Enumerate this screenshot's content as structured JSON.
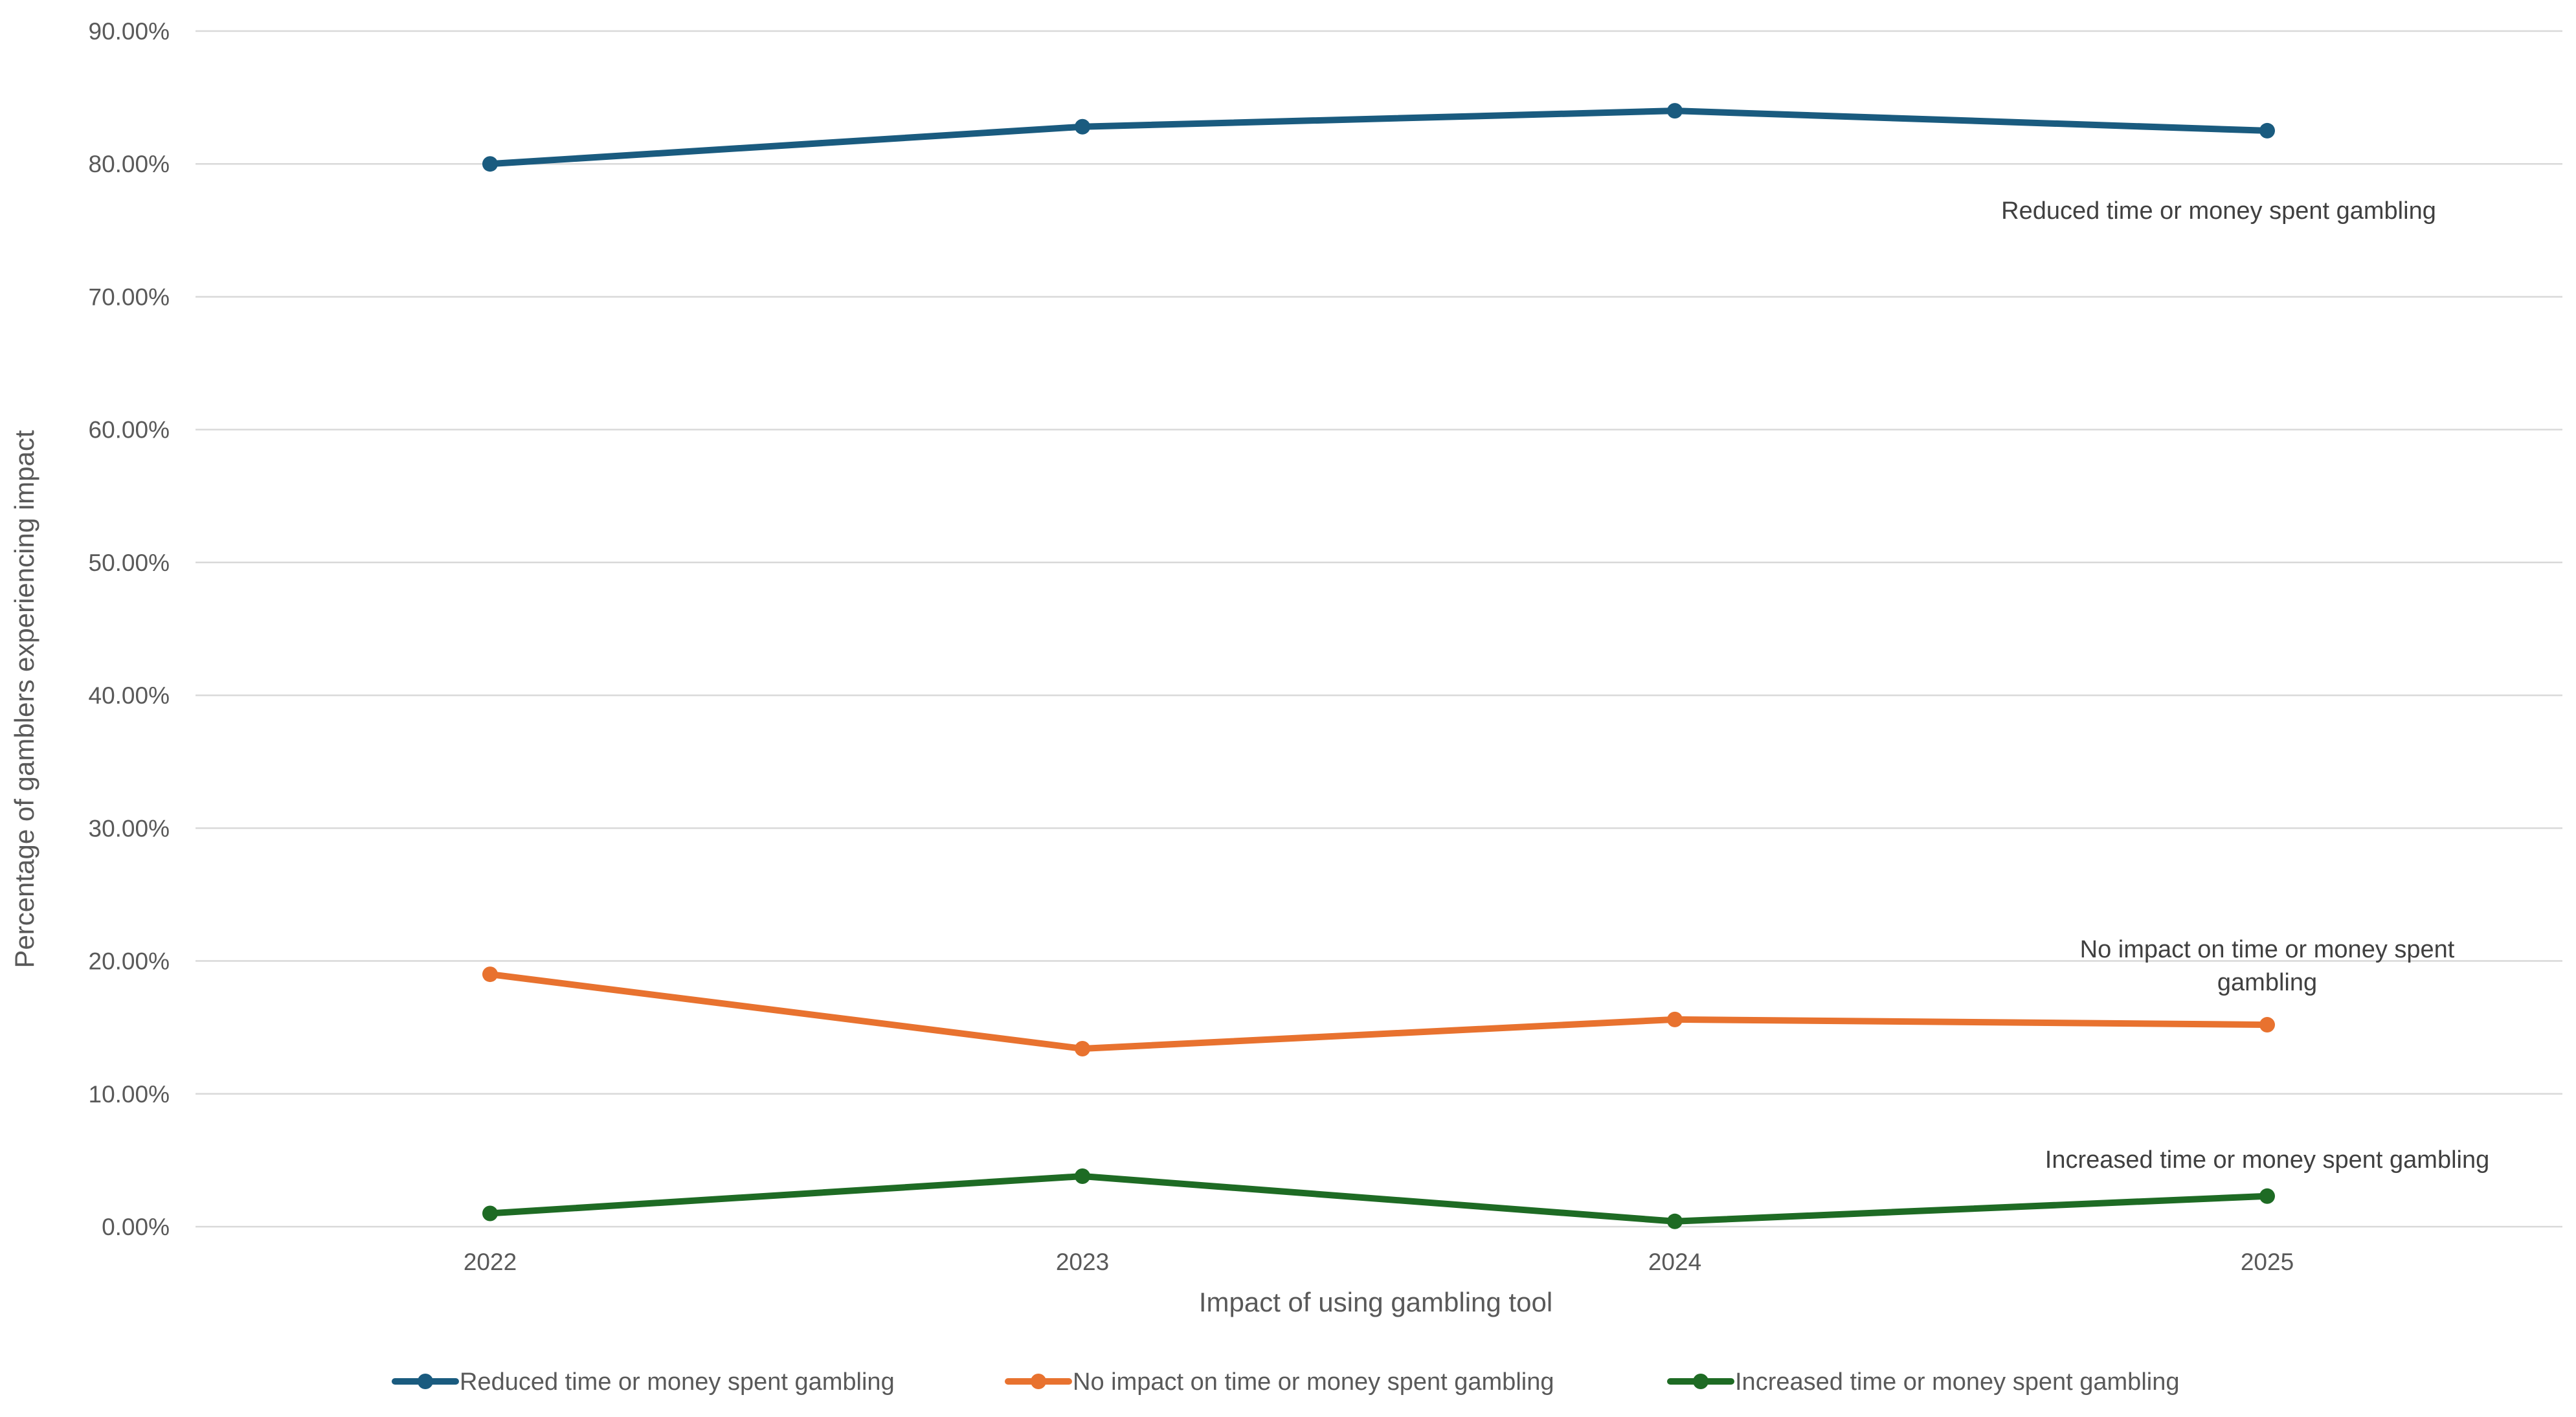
{
  "chart_data": {
    "type": "line",
    "title": "",
    "xlabel": "Impact of using gambling tool",
    "ylabel": "Percentage of gamblers experiencing impact",
    "categories": [
      "2022",
      "2023",
      "2024",
      "2025"
    ],
    "ylim": [
      0,
      90
    ],
    "yticks": [
      0,
      10,
      20,
      30,
      40,
      50,
      60,
      70,
      80,
      90
    ],
    "ytick_labels": [
      "0.00%",
      "10.00%",
      "20.00%",
      "30.00%",
      "40.00%",
      "50.00%",
      "60.00%",
      "70.00%",
      "80.00%",
      "90.00%"
    ],
    "grid": true,
    "legend_position": "bottom",
    "series": [
      {
        "name": "Reduced time or money spent gambling",
        "color": "#1a5b7f",
        "values": [
          80.0,
          82.8,
          84.0,
          82.5
        ],
        "annotation": [
          "Reduced time or money spent gambling"
        ]
      },
      {
        "name": "No impact on time or money spent gambling",
        "color": "#e8722f",
        "values": [
          19.0,
          13.4,
          15.6,
          15.2
        ],
        "annotation": [
          "No impact on time or money spent",
          "gambling"
        ]
      },
      {
        "name": "Increased time or money spent gambling",
        "color": "#1e6b24",
        "values": [
          1.0,
          3.8,
          0.4,
          2.3
        ],
        "annotation": [
          "Increased time or money spent gambling"
        ]
      }
    ]
  }
}
